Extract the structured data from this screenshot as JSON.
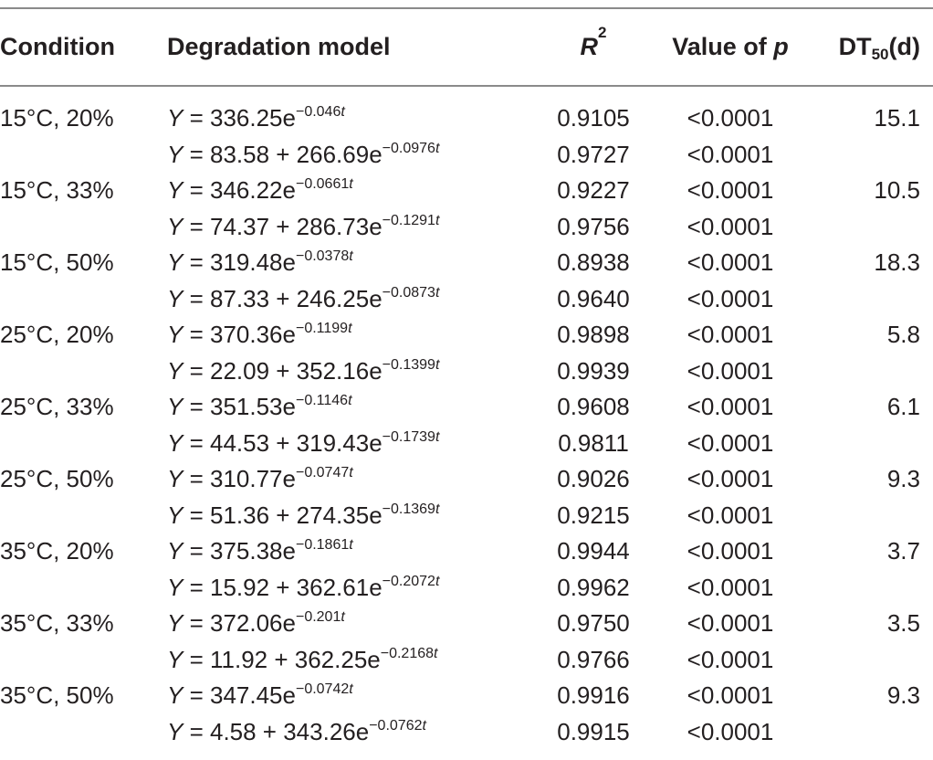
{
  "table": {
    "headers": {
      "condition": "Condition",
      "model": "Degradation model",
      "r2_base": "R",
      "r2_sup": "2",
      "p_prefix": "Value of ",
      "p_var": "p",
      "dt_base": "DT",
      "dt_sub": "50",
      "dt_suffix": "(d)"
    },
    "rows": [
      {
        "condition": "15°C, 20%",
        "eq_lhs": "Y",
        "eq_eq": " = ",
        "eq_body": "336.25e",
        "eq_exp": "−0.046",
        "eq_t": "t",
        "r2": "0.9105",
        "p": "<0.0001",
        "dt50": "15.1"
      },
      {
        "condition": "",
        "eq_lhs": "Y",
        "eq_eq": " = ",
        "eq_body": "83.58 + 266.69e",
        "eq_exp": "−0.0976",
        "eq_t": "t",
        "r2": "0.9727",
        "p": "<0.0001",
        "dt50": ""
      },
      {
        "condition": "15°C, 33%",
        "eq_lhs": "Y",
        "eq_eq": " = ",
        "eq_body": " 346.22e",
        "eq_exp": "−0.0661",
        "eq_t": "t",
        "r2": "0.9227",
        "p": "<0.0001",
        "dt50": "10.5"
      },
      {
        "condition": "",
        "eq_lhs": "Y",
        "eq_eq": " = ",
        "eq_body": " 74.37 + 286.73e",
        "eq_exp": "−0.1291",
        "eq_t": "t",
        "r2": "0.9756",
        "p": "<0.0001",
        "dt50": ""
      },
      {
        "condition": "15°C, 50%",
        "eq_lhs": "Y",
        "eq_eq": " = ",
        "eq_body": "319.48e",
        "eq_exp": "−0.0378",
        "eq_t": "t",
        "r2": "0.8938",
        "p": "<0.0001",
        "dt50": "18.3"
      },
      {
        "condition": "",
        "eq_lhs": "Y",
        "eq_eq": " = ",
        "eq_body": "87.33 + 246.25e",
        "eq_exp": "−0.0873",
        "eq_t": "t",
        "r2": "0.9640",
        "p": "<0.0001",
        "dt50": ""
      },
      {
        "condition": "25°C, 20%",
        "eq_lhs": "Y",
        "eq_eq": " = ",
        "eq_body": "370.36e",
        "eq_exp": "−0.1199",
        "eq_t": "t",
        "r2": "0.9898",
        "p": "<0.0001",
        "dt50": "5.8"
      },
      {
        "condition": "",
        "eq_lhs": "Y",
        "eq_eq": " = ",
        "eq_body": "22.09 + 352.16e",
        "eq_exp": "−0.1399",
        "eq_t": "t",
        "r2": "0.9939",
        "p": "<0.0001",
        "dt50": ""
      },
      {
        "condition": "25°C, 33%",
        "eq_lhs": "Y",
        "eq_eq": " = ",
        "eq_body": "351.53e",
        "eq_exp": "−0.1146",
        "eq_t": "t",
        "r2": "0.9608",
        "p": "<0.0001",
        "dt50": "6.1"
      },
      {
        "condition": "",
        "eq_lhs": "Y",
        "eq_eq": " = ",
        "eq_body": "44.53 + 319.43e",
        "eq_exp": "−0.1739",
        "eq_t": "t",
        "r2": "0.9811",
        "p": "<0.0001",
        "dt50": ""
      },
      {
        "condition": "25°C, 50%",
        "eq_lhs": "Y",
        "eq_eq": " = ",
        "eq_body": "310.77e",
        "eq_exp": "−0.0747",
        "eq_t": "t",
        "r2": "0.9026",
        "p": "<0.0001",
        "dt50": "9.3"
      },
      {
        "condition": "",
        "eq_lhs": "Y",
        "eq_eq": " = ",
        "eq_body": "51.36 + 274.35e",
        "eq_exp": "−0.1369",
        "eq_t": "t",
        "r2": "0.9215",
        "p": "<0.0001",
        "dt50": ""
      },
      {
        "condition": "35°C, 20%",
        "eq_lhs": "Y",
        "eq_eq": " = ",
        "eq_body": "375.38e",
        "eq_exp": "−0.1861",
        "eq_t": "t",
        "r2": "0.9944",
        "p": "<0.0001",
        "dt50": "3.7"
      },
      {
        "condition": "",
        "eq_lhs": "Y",
        "eq_eq": " = ",
        "eq_body": "15.92 + 362.61e",
        "eq_exp": "−0.2072",
        "eq_t": "t",
        "r2": "0.9962",
        "p": "<0.0001",
        "dt50": ""
      },
      {
        "condition": "35°C, 33%",
        "eq_lhs": "Y",
        "eq_eq": " = ",
        "eq_body": "372.06e",
        "eq_exp": "−0.201",
        "eq_t": "t",
        "r2": "0.9750",
        "p": "<0.0001",
        "dt50": "3.5"
      },
      {
        "condition": "",
        "eq_lhs": "Y",
        "eq_eq": " = ",
        "eq_body": "11.92 + 362.25e",
        "eq_exp": "−0.2168",
        "eq_t": "t",
        "r2": "0.9766",
        "p": "<0.0001",
        "dt50": ""
      },
      {
        "condition": "35°C, 50%",
        "eq_lhs": "Y",
        "eq_eq": " = ",
        "eq_body": "347.45e",
        "eq_exp": "−0.0742",
        "eq_t": "t",
        "r2": "0.9916",
        "p": "<0.0001",
        "dt50": "9.3"
      },
      {
        "condition": "",
        "eq_lhs": "Y",
        "eq_eq": " = ",
        "eq_body": "4.58 + 343.26e",
        "eq_exp": "−0.0762",
        "eq_t": "t",
        "r2": "0.9915",
        "p": "<0.0001",
        "dt50": ""
      }
    ]
  }
}
